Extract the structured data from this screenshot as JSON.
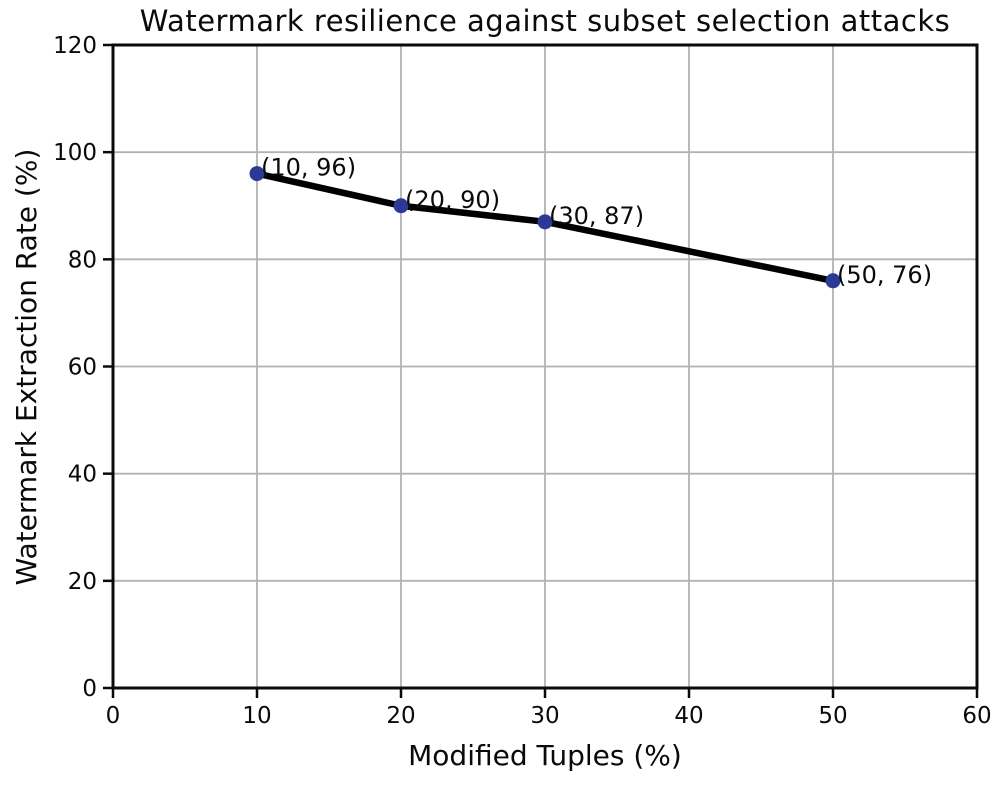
{
  "chart_data": {
    "type": "line",
    "title": "Watermark resilience against subset selection attacks",
    "xlabel": "Modified Tuples (%)",
    "ylabel": "Watermark Extraction Rate (%)",
    "x": [
      10,
      20,
      30,
      50
    ],
    "y": [
      96,
      90,
      87,
      76
    ],
    "point_labels": [
      "(10, 96)",
      "(20, 90)",
      "(30, 87)",
      "(50, 76)"
    ],
    "xlim": [
      0,
      60
    ],
    "ylim": [
      0,
      120
    ],
    "xticks": [
      "0",
      "10",
      "20",
      "30",
      "40",
      "50",
      "60"
    ],
    "yticks": [
      "0",
      "20",
      "40",
      "60",
      "80",
      "100",
      "120"
    ],
    "xtick_values": [
      0,
      10,
      20,
      30,
      40,
      50,
      60
    ],
    "ytick_values": [
      0,
      20,
      40,
      60,
      80,
      100,
      120
    ],
    "grid": true,
    "legend": "none",
    "colors": {
      "line": "#000000",
      "marker": "#2b3a94",
      "grid": "#b2b2b2",
      "spine": "#0a0a0a",
      "text": "#0a0a0a",
      "background": "#ffffff"
    }
  }
}
